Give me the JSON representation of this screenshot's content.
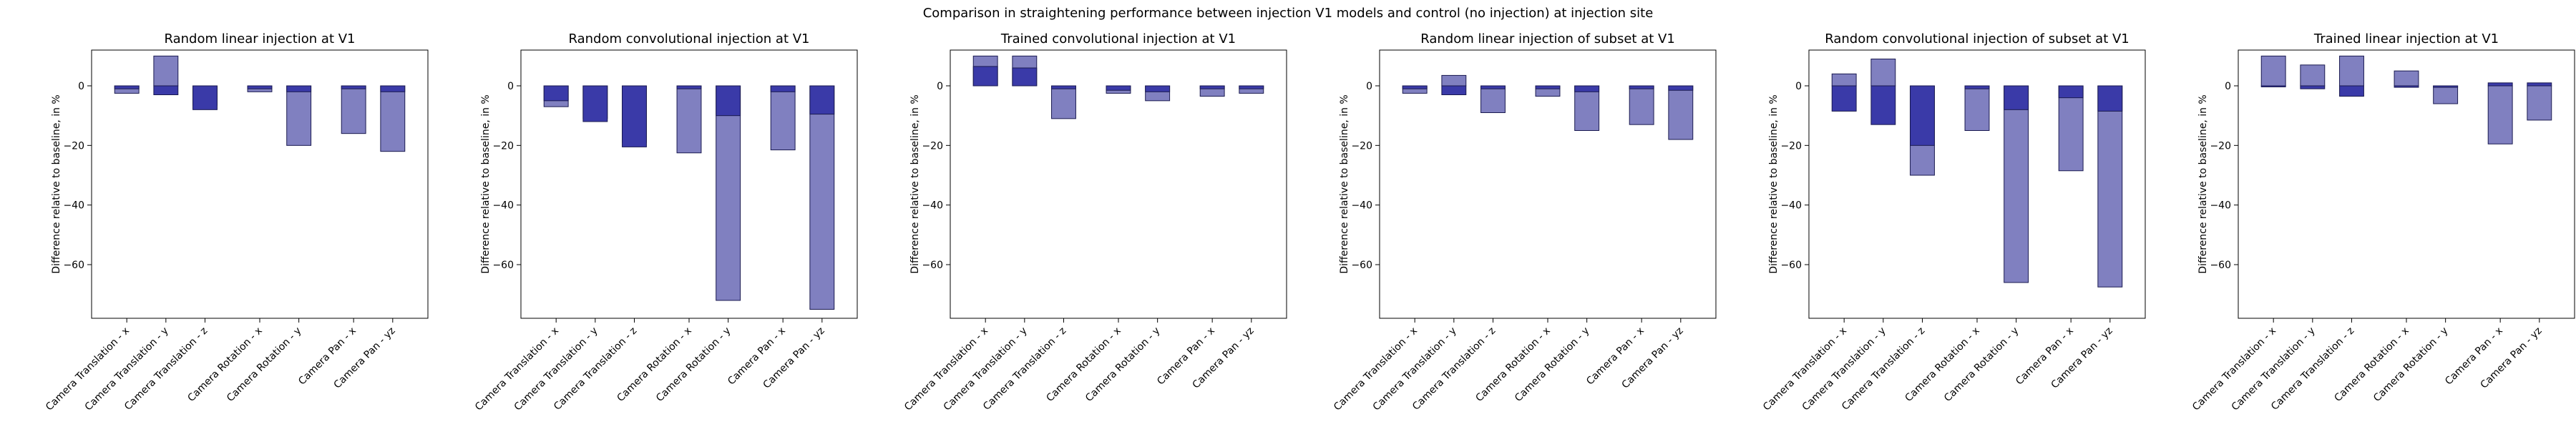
{
  "figure": {
    "suptitle": "Comparison in straightening performance between injection V1 models and control (no injection) at injection site",
    "colors": {
      "light_bar": "#8080c0",
      "dark_bar": "#3a3aa8",
      "edge": "#1a1a50",
      "axis": "#000000"
    }
  },
  "chart_data": [
    {
      "type": "bar",
      "title": "Random linear injection at V1",
      "ylabel": "Difference relative to baseline, in %",
      "ylim": [
        -78,
        12
      ],
      "yticks": [
        0,
        -20,
        -40,
        -60
      ],
      "categories": [
        "Camera Translation - x",
        "Camera Translation - y",
        "Camera Translation - z",
        "Camera Rotation - x",
        "Camera Rotation - y",
        "Camera Pan - x",
        "Camera Pan - yz"
      ],
      "series": [
        {
          "values": [
            -2.5,
            10,
            -6.5,
            -2,
            -20,
            -16,
            -22
          ]
        },
        {
          "values": [
            -1,
            -3,
            -8,
            -1,
            -2,
            -1,
            -2
          ]
        }
      ]
    },
    {
      "type": "bar",
      "title": "Random convolutional injection at V1",
      "ylabel": "Difference relative to baseline, in %",
      "ylim": [
        -78,
        12
      ],
      "yticks": [
        0,
        -20,
        -40,
        -60
      ],
      "categories": [
        "Camera Translation - x",
        "Camera Translation - y",
        "Camera Translation - z",
        "Camera Rotation - x",
        "Camera Rotation - y",
        "Camera Pan - x",
        "Camera Pan - yz"
      ],
      "series": [
        {
          "values": [
            -7,
            -11,
            -19,
            -22.5,
            -72,
            -21.5,
            -75
          ]
        },
        {
          "values": [
            -5,
            -12,
            -20.5,
            -1,
            -10,
            -2,
            -9.5
          ]
        }
      ]
    },
    {
      "type": "bar",
      "title": "Trained convolutional injection at V1",
      "ylabel": "Difference relative to baseline, in %",
      "ylim": [
        -78,
        12
      ],
      "yticks": [
        0,
        -20,
        -40,
        -60
      ],
      "categories": [
        "Camera Translation - x",
        "Camera Translation - y",
        "Camera Translation - z",
        "Camera Rotation - x",
        "Camera Rotation - y",
        "Camera Pan - x",
        "Camera Pan - yz"
      ],
      "series": [
        {
          "values": [
            10,
            10,
            -11,
            -2.5,
            -5,
            -3.5,
            -2.5
          ]
        },
        {
          "values": [
            6.5,
            6,
            -1,
            -1.5,
            -2,
            -1,
            -1
          ]
        }
      ]
    },
    {
      "type": "bar",
      "title": "Random linear injection of subset at V1",
      "ylabel": "Difference relative to baseline, in %",
      "ylim": [
        -78,
        12
      ],
      "yticks": [
        0,
        -20,
        -40,
        -60
      ],
      "categories": [
        "Camera Translation - x",
        "Camera Translation - y",
        "Camera Translation - z",
        "Camera Rotation - x",
        "Camera Rotation - y",
        "Camera Pan - x",
        "Camera Pan - yz"
      ],
      "series": [
        {
          "values": [
            -2.5,
            3.5,
            -9,
            -3.5,
            -15,
            -13,
            -18
          ]
        },
        {
          "values": [
            -1,
            -3,
            -1,
            -1,
            -2,
            -1,
            -1.5
          ]
        }
      ]
    },
    {
      "type": "bar",
      "title": "Random convolutional injection of subset at V1",
      "ylabel": "Difference relative to baseline, in %",
      "ylim": [
        -78,
        12
      ],
      "yticks": [
        0,
        -20,
        -40,
        -60
      ],
      "categories": [
        "Camera Translation - x",
        "Camera Translation - y",
        "Camera Translation - z",
        "Camera Rotation - x",
        "Camera Rotation - y",
        "Camera Pan - x",
        "Camera Pan - yz"
      ],
      "series": [
        {
          "values": [
            4,
            9,
            -30,
            -15,
            -66,
            -28.5,
            -67.5
          ]
        },
        {
          "values": [
            -8.5,
            -13,
            -20,
            -1,
            -8,
            -4,
            -8.5
          ]
        }
      ]
    },
    {
      "type": "bar",
      "title": "Trained linear injection at V1",
      "ylabel": "Difference relative to baseline, in %",
      "ylim": [
        -78,
        12
      ],
      "yticks": [
        0,
        -20,
        -40,
        -60
      ],
      "categories": [
        "Camera Translation - x",
        "Camera Translation - y",
        "Camera Translation - z",
        "Camera Rotation - x",
        "Camera Rotation - y",
        "Camera Pan - x",
        "Camera Pan - yz"
      ],
      "series": [
        {
          "values": [
            10,
            7,
            10,
            5,
            -6,
            -19.5,
            -11.5
          ]
        },
        {
          "values": [
            0,
            -1,
            -3.5,
            -0.5,
            -0.5,
            1,
            1
          ]
        }
      ]
    }
  ]
}
